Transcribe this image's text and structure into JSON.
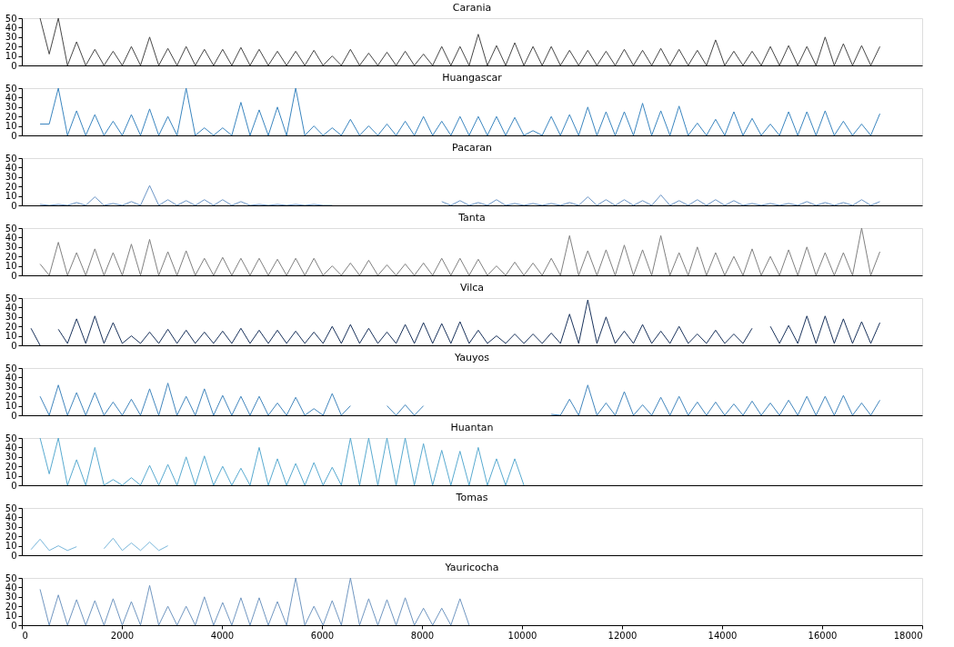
{
  "chart_data": [
    {
      "type": "line",
      "title": "Carania",
      "tick_labels": "y",
      "xlim": [
        0,
        18000
      ],
      "xticks": [
        0,
        2000,
        4000,
        6000,
        8000,
        10000,
        12000,
        14000,
        16000,
        18000
      ],
      "ylim": [
        0,
        50
      ],
      "yticks": [
        0,
        10,
        20,
        30,
        40,
        50
      ],
      "series": [
        {
          "color": "#474747",
          "x": [
            365,
            548,
            730,
            913,
            1095,
            1278,
            1460,
            1643,
            1825,
            2008,
            2190,
            2373,
            2555,
            2738,
            2920,
            3103,
            3285,
            3468,
            3650,
            3833,
            4015,
            4198,
            4380,
            4563,
            4745,
            4928,
            5110,
            5293,
            5475,
            5658,
            5840,
            6023,
            6205,
            6388,
            6570,
            6753,
            6935,
            7118,
            7300,
            7483,
            7665,
            7848,
            8030,
            8213,
            8395,
            8578,
            8760,
            8943,
            9125,
            9308,
            9490,
            9673,
            9855,
            10038,
            10220,
            10403,
            10585,
            10768,
            10950,
            11133,
            11315,
            11498,
            11680,
            11863,
            12045,
            12228,
            12410,
            12593,
            12775,
            12958,
            13140,
            13323,
            13505,
            13688,
            13870,
            14053,
            14235,
            14418,
            14600,
            14783,
            14965,
            15148,
            15330,
            15513,
            15695,
            15878,
            16060,
            16243,
            16425,
            16608,
            16790,
            16973,
            17155
          ],
          "values": [
            50,
            12,
            50,
            0,
            25,
            0,
            17,
            0,
            15,
            0,
            20,
            0,
            30,
            0,
            18,
            0,
            20,
            0,
            17,
            0,
            17,
            0,
            19,
            0,
            17,
            0,
            15,
            0,
            15,
            0,
            16,
            0,
            10,
            0,
            17,
            0,
            13,
            0,
            14,
            0,
            15,
            0,
            12,
            0,
            20,
            0,
            20,
            0,
            33,
            0,
            21,
            0,
            24,
            0,
            20,
            0,
            20,
            0,
            16,
            0,
            16,
            0,
            15,
            0,
            17,
            0,
            16,
            0,
            18,
            0,
            17,
            0,
            16,
            0,
            27,
            0,
            15,
            0,
            15,
            0,
            20,
            0,
            21,
            0,
            20,
            0,
            30,
            0,
            23,
            0,
            21,
            0,
            20
          ]
        }
      ]
    },
    {
      "type": "line",
      "title": "Huangascar",
      "tick_labels": "y",
      "xlim": [
        0,
        18000
      ],
      "xticks": [
        0,
        2000,
        4000,
        6000,
        8000,
        10000,
        12000,
        14000,
        16000,
        18000
      ],
      "ylim": [
        0,
        50
      ],
      "yticks": [
        0,
        10,
        20,
        30,
        40,
        50
      ],
      "series": [
        {
          "color": "#3a85bf",
          "x": [
            365,
            548,
            730,
            913,
            1095,
            1278,
            1460,
            1643,
            1825,
            2008,
            2190,
            2373,
            2555,
            2738,
            2920,
            3103,
            3285,
            3468,
            3650,
            3833,
            4015,
            4198,
            4380,
            4563,
            4745,
            4928,
            5110,
            5293,
            5475,
            5658,
            5840,
            6023,
            6205,
            6388,
            6570,
            6753,
            6935,
            7118,
            7300,
            7483,
            7665,
            7848,
            8030,
            8213,
            8395,
            8578,
            8760,
            8943,
            9125,
            9308,
            9490,
            9673,
            9855,
            10038,
            10220,
            10403,
            10585,
            10768,
            10950,
            11133,
            11315,
            11498,
            11680,
            11863,
            12045,
            12228,
            12410,
            12593,
            12775,
            12958,
            13140,
            13323,
            13505,
            13688,
            13870,
            14053,
            14235,
            14418,
            14600,
            14783,
            14965,
            15148,
            15330,
            15513,
            15695,
            15878,
            16060,
            16243,
            16425,
            16608,
            16790,
            16973,
            17155
          ],
          "values": [
            12,
            12,
            50,
            0,
            26,
            0,
            22,
            0,
            15,
            0,
            22,
            0,
            28,
            0,
            20,
            0,
            50,
            0,
            8,
            0,
            8,
            0,
            35,
            0,
            27,
            0,
            30,
            0,
            50,
            0,
            10,
            0,
            8,
            0,
            17,
            0,
            10,
            0,
            12,
            0,
            15,
            0,
            20,
            0,
            15,
            0,
            20,
            0,
            20,
            0,
            20,
            0,
            19,
            0,
            5,
            0,
            20,
            0,
            22,
            0,
            30,
            0,
            25,
            0,
            25,
            0,
            34,
            0,
            26,
            0,
            31,
            0,
            13,
            0,
            17,
            0,
            25,
            0,
            18,
            0,
            12,
            0,
            25,
            0,
            25,
            0,
            26,
            0,
            15,
            0,
            12,
            0,
            23
          ]
        }
      ]
    },
    {
      "type": "line",
      "title": "Pacaran",
      "tick_labels": "y",
      "xlim": [
        0,
        18000
      ],
      "xticks": [
        0,
        2000,
        4000,
        6000,
        8000,
        10000,
        12000,
        14000,
        16000,
        18000
      ],
      "ylim": [
        0,
        50
      ],
      "yticks": [
        0,
        10,
        20,
        30,
        40,
        50
      ],
      "series": [
        {
          "color": "#6b95c6",
          "x": [
            365,
            548,
            730,
            913,
            1095,
            1278,
            1460,
            1643,
            1825,
            2008,
            2190,
            2373,
            2555,
            2738,
            2920,
            3103,
            3285,
            3468,
            3650,
            3833,
            4015,
            4198,
            4380,
            4563,
            4745,
            4928,
            5110,
            5293,
            5475,
            5658,
            5840,
            6023,
            6205,
            6388,
            6570,
            6753,
            6935,
            7118,
            7300,
            7483,
            7665,
            7848,
            8030,
            8213,
            8395,
            8578,
            8760,
            8943,
            9125,
            9308,
            9490,
            9673,
            9855,
            10038,
            10220,
            10403,
            10585,
            10768,
            10950,
            11133,
            11315,
            11498,
            11680,
            11863,
            12045,
            12228,
            12410,
            12593,
            12775,
            12958,
            13140,
            13323,
            13505,
            13688,
            13870,
            14053,
            14235,
            14418,
            14600,
            14783,
            14965,
            15148,
            15330,
            15513,
            15695,
            15878,
            16060,
            16243,
            16425,
            16608,
            16790,
            16973,
            17155
          ],
          "values": [
            1,
            0,
            1,
            0,
            3,
            0,
            9,
            0,
            2,
            0,
            4,
            0,
            21,
            0,
            6,
            0,
            5,
            0,
            6,
            0,
            6,
            0,
            4,
            0,
            1,
            0,
            1,
            0,
            1,
            0,
            1,
            0,
            0,
            null,
            null,
            null,
            null,
            null,
            null,
            null,
            null,
            null,
            null,
            null,
            4,
            0,
            5,
            0,
            3,
            0,
            6,
            0,
            2,
            0,
            2,
            0,
            2,
            0,
            3,
            0,
            9,
            0,
            6,
            0,
            6,
            0,
            5,
            0,
            11,
            0,
            5,
            0,
            6,
            0,
            6,
            0,
            5,
            0,
            2,
            0,
            2,
            0,
            2,
            0,
            4,
            0,
            3,
            0,
            3,
            0,
            6,
            0,
            4
          ]
        }
      ]
    },
    {
      "type": "line",
      "title": "Tanta",
      "tick_labels": "y",
      "xlim": [
        0,
        18000
      ],
      "xticks": [
        0,
        2000,
        4000,
        6000,
        8000,
        10000,
        12000,
        14000,
        16000,
        18000
      ],
      "ylim": [
        0,
        50
      ],
      "yticks": [
        0,
        10,
        20,
        30,
        40,
        50
      ],
      "series": [
        {
          "color": "#808080",
          "x": [
            365,
            548,
            730,
            913,
            1095,
            1278,
            1460,
            1643,
            1825,
            2008,
            2190,
            2373,
            2555,
            2738,
            2920,
            3103,
            3285,
            3468,
            3650,
            3833,
            4015,
            4198,
            4380,
            4563,
            4745,
            4928,
            5110,
            5293,
            5475,
            5658,
            5840,
            6023,
            6205,
            6388,
            6570,
            6753,
            6935,
            7118,
            7300,
            7483,
            7665,
            7848,
            8030,
            8213,
            8395,
            8578,
            8760,
            8943,
            9125,
            9308,
            9490,
            9673,
            9855,
            10038,
            10220,
            10403,
            10585,
            10768,
            10950,
            11133,
            11315,
            11498,
            11680,
            11863,
            12045,
            12228,
            12410,
            12593,
            12775,
            12958,
            13140,
            13323,
            13505,
            13688,
            13870,
            14053,
            14235,
            14418,
            14600,
            14783,
            14965,
            15148,
            15330,
            15513,
            15695,
            15878,
            16060,
            16243,
            16425,
            16608,
            16790,
            16973,
            17155
          ],
          "values": [
            12,
            0,
            35,
            0,
            24,
            0,
            28,
            0,
            24,
            0,
            33,
            0,
            38,
            0,
            25,
            0,
            26,
            0,
            18,
            0,
            19,
            0,
            18,
            0,
            18,
            0,
            17,
            0,
            18,
            0,
            18,
            0,
            10,
            0,
            13,
            0,
            16,
            0,
            11,
            0,
            12,
            0,
            13,
            0,
            18,
            0,
            18,
            0,
            17,
            0,
            10,
            0,
            14,
            0,
            13,
            0,
            18,
            0,
            42,
            0,
            26,
            0,
            27,
            0,
            32,
            0,
            27,
            0,
            42,
            0,
            24,
            0,
            30,
            0,
            24,
            0,
            20,
            0,
            28,
            0,
            20,
            0,
            27,
            0,
            30,
            0,
            24,
            0,
            24,
            0,
            50,
            0,
            25
          ]
        }
      ]
    },
    {
      "type": "line",
      "title": "Vilca",
      "tick_labels": "y",
      "xlim": [
        0,
        18000
      ],
      "xticks": [
        0,
        2000,
        4000,
        6000,
        8000,
        10000,
        12000,
        14000,
        16000,
        18000
      ],
      "ylim": [
        0,
        50
      ],
      "yticks": [
        0,
        10,
        20,
        30,
        40,
        50
      ],
      "series": [
        {
          "color": "#1a335c",
          "x": [
            183,
            365,
            548,
            730,
            913,
            1095,
            1278,
            1460,
            1643,
            1825,
            2008,
            2190,
            2373,
            2555,
            2738,
            2920,
            3103,
            3285,
            3468,
            3650,
            3833,
            4015,
            4198,
            4380,
            4563,
            4745,
            4928,
            5110,
            5293,
            5475,
            5658,
            5840,
            6023,
            6205,
            6388,
            6570,
            6753,
            6935,
            7118,
            7300,
            7483,
            7665,
            7848,
            8030,
            8213,
            8395,
            8578,
            8760,
            8943,
            9125,
            9308,
            9490,
            9673,
            9855,
            10038,
            10220,
            10403,
            10585,
            10768,
            10950,
            11133,
            11315,
            11498,
            11680,
            11863,
            12045,
            12228,
            12410,
            12593,
            12775,
            12958,
            13140,
            13323,
            13505,
            13688,
            13870,
            14053,
            14235,
            14418,
            14600,
            14783,
            14965,
            15148,
            15330,
            15513,
            15695,
            15878,
            16060,
            16243,
            16425,
            16608,
            16790,
            16973,
            17155
          ],
          "values": [
            18,
            0,
            null,
            17,
            2,
            28,
            2,
            31,
            2,
            24,
            2,
            10,
            2,
            14,
            2,
            17,
            2,
            16,
            2,
            14,
            2,
            15,
            2,
            18,
            2,
            16,
            2,
            16,
            2,
            15,
            2,
            14,
            2,
            20,
            2,
            22,
            2,
            18,
            2,
            14,
            2,
            22,
            2,
            24,
            2,
            23,
            2,
            25,
            2,
            16,
            2,
            10,
            2,
            12,
            2,
            12,
            2,
            13,
            2,
            33,
            2,
            48,
            2,
            30,
            2,
            15,
            2,
            22,
            2,
            15,
            2,
            20,
            2,
            12,
            2,
            16,
            2,
            12,
            2,
            18,
            null,
            20,
            2,
            21,
            2,
            31,
            2,
            31,
            2,
            28,
            2,
            25,
            2,
            24
          ]
        }
      ]
    },
    {
      "type": "line",
      "title": "Yauyos",
      "tick_labels": "y",
      "xlim": [
        0,
        18000
      ],
      "xticks": [
        0,
        2000,
        4000,
        6000,
        8000,
        10000,
        12000,
        14000,
        16000,
        18000
      ],
      "ylim": [
        0,
        50
      ],
      "yticks": [
        0,
        10,
        20,
        30,
        40,
        50
      ],
      "series": [
        {
          "color": "#4286bd",
          "x": [
            365,
            548,
            730,
            913,
            1095,
            1278,
            1460,
            1643,
            1825,
            2008,
            2190,
            2373,
            2555,
            2738,
            2920,
            3103,
            3285,
            3468,
            3650,
            3833,
            4015,
            4198,
            4380,
            4563,
            4745,
            4928,
            5110,
            5293,
            5475,
            5658,
            5840,
            6023,
            6205,
            6388,
            6570,
            6753,
            6935,
            7118,
            7300,
            7483,
            7665,
            7848,
            8030,
            8213,
            8395,
            8578,
            8760,
            8943,
            9125,
            9308,
            9490,
            9673,
            9855,
            10038,
            10220,
            10403,
            10585,
            10768,
            10950,
            11133,
            11315,
            11498,
            11680,
            11863,
            12045,
            12228,
            12410,
            12593,
            12775,
            12958,
            13140,
            13323,
            13505,
            13688,
            13870,
            14053,
            14235,
            14418,
            14600,
            14783,
            14965,
            15148,
            15330,
            15513,
            15695,
            15878,
            16060,
            16243,
            16425,
            16608,
            16790,
            16973,
            17155
          ],
          "values": [
            20,
            0,
            32,
            0,
            24,
            0,
            24,
            0,
            14,
            0,
            17,
            0,
            28,
            0,
            34,
            0,
            20,
            0,
            28,
            0,
            21,
            0,
            20,
            0,
            20,
            0,
            13,
            0,
            19,
            0,
            7,
            0,
            23,
            0,
            10,
            null,
            null,
            null,
            10,
            0,
            11,
            0,
            10,
            null,
            null,
            null,
            null,
            null,
            null,
            null,
            null,
            null,
            null,
            null,
            null,
            null,
            1,
            0,
            17,
            0,
            32,
            0,
            13,
            0,
            25,
            0,
            11,
            0,
            19,
            0,
            20,
            0,
            14,
            0,
            14,
            0,
            12,
            0,
            15,
            0,
            13,
            0,
            16,
            0,
            20,
            0,
            20,
            0,
            21,
            0,
            13,
            0,
            16
          ]
        }
      ]
    },
    {
      "type": "line",
      "title": "Huantan",
      "tick_labels": "y",
      "xlim": [
        0,
        18000
      ],
      "xticks": [
        0,
        2000,
        4000,
        6000,
        8000,
        10000,
        12000,
        14000,
        16000,
        18000
      ],
      "ylim": [
        0,
        50
      ],
      "yticks": [
        0,
        10,
        20,
        30,
        40,
        50
      ],
      "series": [
        {
          "color": "#58aad0",
          "x": [
            365,
            548,
            730,
            913,
            1095,
            1278,
            1460,
            1643,
            1825,
            2008,
            2190,
            2373,
            2555,
            2738,
            2920,
            3103,
            3285,
            3468,
            3650,
            3833,
            4015,
            4198,
            4380,
            4563,
            4745,
            4928,
            5110,
            5293,
            5475,
            5658,
            5840,
            6023,
            6205,
            6388,
            6570,
            6753,
            6935,
            7118,
            7300,
            7483,
            7665,
            7848,
            8030,
            8213,
            8395,
            8578,
            8760,
            8943,
            9125,
            9308,
            9490,
            9673,
            9855,
            10038
          ],
          "values": [
            50,
            12,
            50,
            0,
            27,
            0,
            40,
            0,
            6,
            0,
            8,
            0,
            21,
            0,
            22,
            0,
            30,
            0,
            31,
            0,
            20,
            0,
            18,
            0,
            40,
            0,
            28,
            0,
            23,
            0,
            24,
            0,
            19,
            0,
            50,
            0,
            50,
            0,
            50,
            0,
            50,
            0,
            44,
            0,
            37,
            0,
            36,
            0,
            40,
            0,
            28,
            0,
            28,
            0
          ]
        }
      ]
    },
    {
      "type": "line",
      "title": "Tomas",
      "tick_labels": "y",
      "xlim": [
        0,
        18000
      ],
      "xticks": [
        0,
        2000,
        4000,
        6000,
        8000,
        10000,
        12000,
        14000,
        16000,
        18000
      ],
      "ylim": [
        0,
        50
      ],
      "yticks": [
        0,
        10,
        20,
        30,
        40,
        50
      ],
      "series": [
        {
          "color": "#7ab7db",
          "x": [
            183,
            365,
            548,
            730,
            913,
            1095,
            1278,
            1460,
            1643,
            1825,
            2008,
            2190,
            2373,
            2555,
            2738,
            2920
          ],
          "values": [
            6,
            17,
            5,
            10,
            5,
            9,
            null,
            null,
            7,
            18,
            5,
            13,
            5,
            14,
            5,
            10
          ]
        }
      ]
    },
    {
      "type": "line",
      "title": "Yauricocha",
      "xlim": [
        0,
        18000
      ],
      "xticks": [
        0,
        2000,
        4000,
        6000,
        8000,
        10000,
        12000,
        14000,
        16000,
        18000
      ],
      "ylim": [
        0,
        50
      ],
      "yticks": [
        0,
        10,
        20,
        30,
        40,
        50
      ],
      "series": [
        {
          "color": "#7096c0",
          "x": [
            365,
            548,
            730,
            913,
            1095,
            1278,
            1460,
            1643,
            1825,
            2008,
            2190,
            2373,
            2555,
            2738,
            2920,
            3103,
            3285,
            3468,
            3650,
            3833,
            4015,
            4198,
            4380,
            4563,
            4745,
            4928,
            5110,
            5293,
            5475,
            5658,
            5840,
            6023,
            6205,
            6388,
            6570,
            6753,
            6935,
            7118,
            7300,
            7483,
            7665,
            7848,
            8030,
            8213,
            8395,
            8578,
            8760,
            8943
          ],
          "values": [
            38,
            0,
            32,
            0,
            27,
            0,
            26,
            0,
            28,
            0,
            25,
            0,
            42,
            0,
            20,
            0,
            20,
            0,
            30,
            0,
            24,
            0,
            29,
            0,
            29,
            0,
            25,
            0,
            50,
            0,
            20,
            0,
            26,
            0,
            50,
            0,
            28,
            0,
            27,
            0,
            29,
            0,
            18,
            0,
            18,
            0,
            28,
            0
          ]
        }
      ]
    }
  ]
}
